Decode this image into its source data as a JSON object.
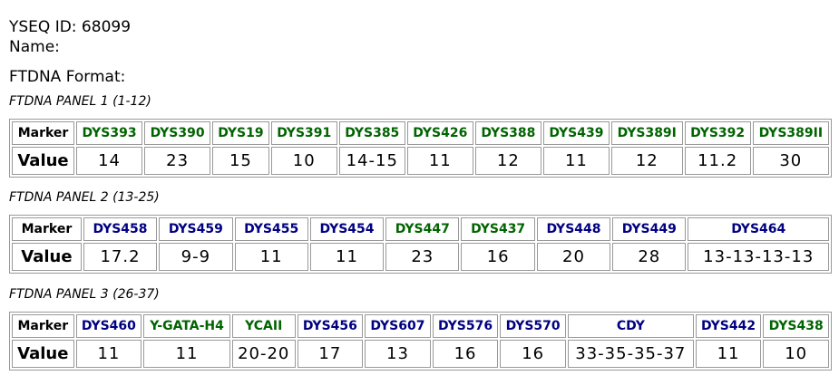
{
  "header": {
    "id_line": "YSEQ ID: 68099",
    "name_line": "Name:",
    "format_line": "FTDNA Format:"
  },
  "row_labels": {
    "marker": "Marker",
    "value": "Value"
  },
  "panels": [
    {
      "title": "FTDNA PANEL 1 (1-12)",
      "markers": [
        {
          "name": "DYS393",
          "color": "#006400"
        },
        {
          "name": "DYS390",
          "color": "#006400"
        },
        {
          "name": "DYS19",
          "color": "#006400"
        },
        {
          "name": "DYS391",
          "color": "#006400"
        },
        {
          "name": "DYS385",
          "color": "#006400"
        },
        {
          "name": "DYS426",
          "color": "#006400"
        },
        {
          "name": "DYS388",
          "color": "#006400"
        },
        {
          "name": "DYS439",
          "color": "#006400"
        },
        {
          "name": "DYS389I",
          "color": "#006400"
        },
        {
          "name": "DYS392",
          "color": "#006400"
        },
        {
          "name": "DYS389II",
          "color": "#006400"
        }
      ],
      "values": [
        "14",
        "23",
        "15",
        "10",
        "14-15",
        "11",
        "12",
        "11",
        "12",
        "11.2",
        "30"
      ]
    },
    {
      "title": "FTDNA PANEL 2 (13-25)",
      "markers": [
        {
          "name": "DYS458",
          "color": "#000080"
        },
        {
          "name": "DYS459",
          "color": "#000080"
        },
        {
          "name": "DYS455",
          "color": "#000080"
        },
        {
          "name": "DYS454",
          "color": "#000080"
        },
        {
          "name": "DYS447",
          "color": "#006400"
        },
        {
          "name": "DYS437",
          "color": "#006400"
        },
        {
          "name": "DYS448",
          "color": "#000080"
        },
        {
          "name": "DYS449",
          "color": "#000080"
        },
        {
          "name": "DYS464",
          "color": "#000080"
        }
      ],
      "values": [
        "17.2",
        "9-9",
        "11",
        "11",
        "23",
        "16",
        "20",
        "28",
        "13-13-13-13"
      ]
    },
    {
      "title": "FTDNA PANEL 3 (26-37)",
      "markers": [
        {
          "name": "DYS460",
          "color": "#000080"
        },
        {
          "name": "Y-GATA-H4",
          "color": "#006400"
        },
        {
          "name": "YCAII",
          "color": "#006400"
        },
        {
          "name": "DYS456",
          "color": "#000080"
        },
        {
          "name": "DYS607",
          "color": "#000080"
        },
        {
          "name": "DYS576",
          "color": "#000080"
        },
        {
          "name": "DYS570",
          "color": "#000080"
        },
        {
          "name": "CDY",
          "color": "#000080"
        },
        {
          "name": "DYS442",
          "color": "#000080"
        },
        {
          "name": "DYS438",
          "color": "#006400"
        }
      ],
      "values": [
        "11",
        "11",
        "20-20",
        "17",
        "13",
        "16",
        "16",
        "33-35-35-37",
        "11",
        "10"
      ]
    }
  ]
}
